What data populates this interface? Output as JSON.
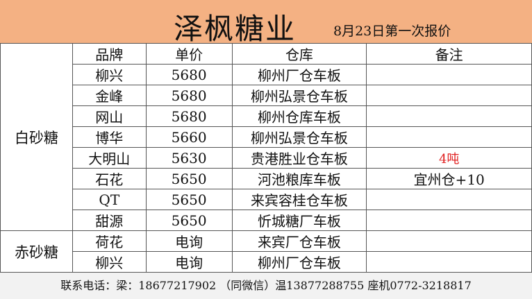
{
  "header": {
    "title": "泽枫糖业",
    "subtitle": "8月23日第一次报价"
  },
  "columns": [
    "品牌",
    "单价",
    "仓库",
    "备注"
  ],
  "groups": [
    {
      "category": "白砂糖",
      "rows": [
        {
          "brand": "柳兴",
          "price": "5680",
          "warehouse": "柳州厂仓车板",
          "note": ""
        },
        {
          "brand": "金峰",
          "price": "5680",
          "warehouse": "柳州弘景仓车板",
          "note": ""
        },
        {
          "brand": "网山",
          "price": "5680",
          "warehouse": "柳州仓库车板",
          "note": ""
        },
        {
          "brand": "博华",
          "price": "5660",
          "warehouse": "柳州弘景仓车板",
          "note": ""
        },
        {
          "brand": "大明山",
          "price": "5630",
          "warehouse": "贵港胜业仓车板",
          "note": "4吨"
        },
        {
          "brand": "石花",
          "price": "5650",
          "warehouse": "河池粮库车板",
          "note": "宜州仓+10"
        },
        {
          "brand": "QT",
          "price": "5650",
          "warehouse": "来宾容桂仓车板",
          "note": ""
        },
        {
          "brand": "甜源",
          "price": "5650",
          "warehouse": "忻城糖厂车板",
          "note": ""
        }
      ]
    },
    {
      "category": "赤砂糖",
      "rows": [
        {
          "brand": "荷花",
          "price": "电询",
          "warehouse": "来宾厂仓车板",
          "note": ""
        },
        {
          "brand": "柳兴",
          "price": "电询",
          "warehouse": "柳州厂仓车板",
          "note": ""
        }
      ]
    }
  ],
  "footer": {
    "contact": "联系电话：梁：18677217902  （同微信）温13877288755  座机0772-3218817"
  },
  "colors": {
    "header_bg": "#f4b183",
    "note_highlight": "#e02020",
    "footer_bg": "#f2f2f2"
  }
}
